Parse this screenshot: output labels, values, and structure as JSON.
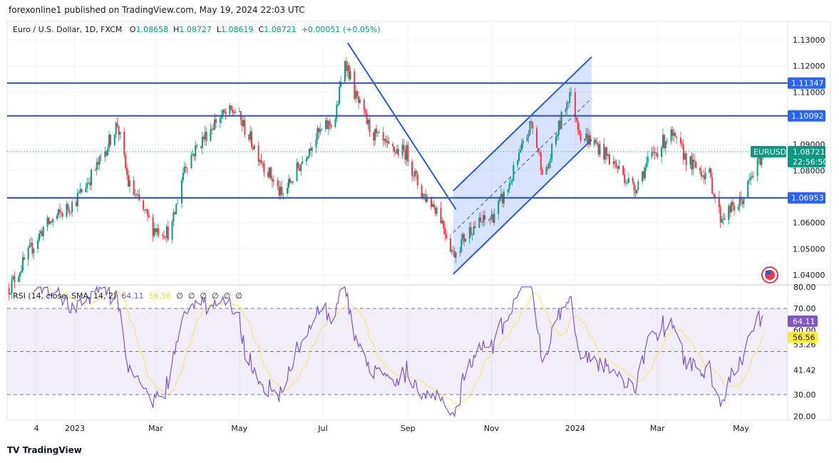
{
  "header": {
    "published": "forexonline1 published on TradingView.com, May 19, 2024 22:03 UTC"
  },
  "legend": {
    "symbol": "Euro / U.S. Dollar, 1D, FXCM",
    "o_label": "O",
    "o": "1.08658",
    "h_label": "H",
    "h": "1.08727",
    "l_label": "L",
    "l": "1.08619",
    "c_label": "C",
    "c": "1.08721",
    "change": "+0.00051 (+0.05%)"
  },
  "rsi_legend": {
    "title": "RSI (14, close, SMA, 14, 2)",
    "rsi": "64.11",
    "sma": "56.56",
    "empty": [
      "∅",
      "∅",
      "∅",
      "∅",
      "∅",
      "∅"
    ]
  },
  "footer": {
    "logo": "TradingView"
  },
  "colors": {
    "up": "#089981",
    "down": "#f23645",
    "level": "#2962ff",
    "rsi": "#7e57c2",
    "sma": "#f7e57a"
  },
  "chart_data": {
    "type": "candlestick",
    "symbol": "EURUSD",
    "price_ticks": [
      "1.13000",
      "1.12000",
      "1.11000",
      "1.09000",
      "1.08000",
      "1.06000",
      "1.05000",
      "1.04000"
    ],
    "ylim": [
      1.04,
      1.13
    ],
    "x_ticks": [
      "4",
      "2023",
      "Mar",
      "May",
      "Jul",
      "Sep",
      "Nov",
      "2024",
      "Mar",
      "May"
    ],
    "x_tick_dates": [
      "2022-12-04",
      "2023-01-01",
      "2023-03-01",
      "2023-05-01",
      "2023-07-01",
      "2023-09-01",
      "2023-11-01",
      "2024-01-01",
      "2024-03-01",
      "2024-05-01"
    ],
    "levels": [
      {
        "label": "1.11347",
        "value": 1.11347
      },
      {
        "label": "1.10092",
        "value": 1.10092
      },
      {
        "label": "1.06953",
        "value": 1.06953
      }
    ],
    "current": {
      "label": "EURUSD",
      "price": "1.08721",
      "countdown": "22:56:50",
      "value": 1.08721
    },
    "close_path": [
      [
        "2022-11-14",
        1.035
      ],
      [
        "2022-12-09",
        1.058
      ],
      [
        "2023-01-01",
        1.068
      ],
      [
        "2023-01-19",
        1.083
      ],
      [
        "2023-02-01",
        1.098
      ],
      [
        "2023-02-09",
        1.075
      ],
      [
        "2023-02-27",
        1.058
      ],
      [
        "2023-03-12",
        1.056
      ],
      [
        "2023-03-22",
        1.082
      ],
      [
        "2023-04-15",
        1.1
      ],
      [
        "2023-04-28",
        1.103
      ],
      [
        "2023-05-11",
        1.09
      ],
      [
        "2023-06-01",
        1.07
      ],
      [
        "2023-06-14",
        1.082
      ],
      [
        "2023-06-24",
        1.092
      ],
      [
        "2023-07-10",
        1.1
      ],
      [
        "2023-07-17",
        1.123
      ],
      [
        "2023-07-25",
        1.108
      ],
      [
        "2023-08-05",
        1.095
      ],
      [
        "2023-08-18",
        1.088
      ],
      [
        "2023-08-31",
        1.087
      ],
      [
        "2023-09-10",
        1.072
      ],
      [
        "2023-09-23",
        1.065
      ],
      [
        "2023-10-04",
        1.048
      ],
      [
        "2023-10-17",
        1.058
      ],
      [
        "2023-11-01",
        1.062
      ],
      [
        "2023-11-12",
        1.072
      ],
      [
        "2023-11-30",
        1.098
      ],
      [
        "2023-12-10",
        1.077
      ],
      [
        "2023-12-18",
        1.093
      ],
      [
        "2023-12-28",
        1.11
      ],
      [
        "2024-01-05",
        1.094
      ],
      [
        "2024-01-16",
        1.09
      ],
      [
        "2024-02-03",
        1.08
      ],
      [
        "2024-02-13",
        1.073
      ],
      [
        "2024-02-24",
        1.084
      ],
      [
        "2024-03-10",
        1.094
      ],
      [
        "2024-03-26",
        1.082
      ],
      [
        "2024-04-08",
        1.078
      ],
      [
        "2024-04-16",
        1.062
      ],
      [
        "2024-05-01",
        1.068
      ],
      [
        "2024-05-17",
        1.0872
      ]
    ],
    "trendline": [
      [
        "2023-07-19",
        1.1289
      ],
      [
        "2023-10-06",
        1.0651
      ]
    ],
    "channel": {
      "lower": [
        [
          "2023-10-04",
          1.0403
        ],
        [
          "2024-01-13",
          1.0918
        ]
      ],
      "upper": [
        [
          "2023-10-04",
          1.0722
        ],
        [
          "2024-01-13",
          1.1235
        ]
      ]
    },
    "rsi": {
      "ticks": [
        "80.00",
        "70.00",
        "60.00",
        "53.26",
        "41.42",
        "30.00",
        "20.00"
      ],
      "tick_values": [
        80,
        70,
        60,
        53.26,
        41.42,
        30,
        20
      ],
      "band": [
        30,
        70
      ],
      "ylim": [
        20,
        80
      ],
      "last_rsi": "64.11",
      "last_sma": "56.56"
    }
  }
}
